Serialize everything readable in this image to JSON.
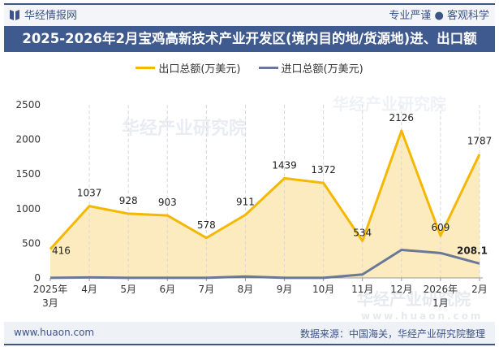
{
  "header": {
    "brand": "华经情报网",
    "slogan": "专业严谨 ● 客观科学",
    "logo_icon": "book-icon"
  },
  "title": "2025-2026年2月宝鸡高新技术产业开发区(境内目的地/货源地)进、出口额",
  "footer": {
    "website": "www.huaon.com",
    "source": "数据来源：中国海关，华经产业研究院整理"
  },
  "watermark": {
    "text": "华经产业研究院",
    "url": "www.huaon.com"
  },
  "chart_data": {
    "type": "line",
    "categories": [
      "2025年\n3月",
      "4月",
      "5月",
      "6月",
      "7月",
      "8月",
      "9月",
      "10月",
      "11月",
      "12月",
      "2026年\n1月",
      "2月"
    ],
    "ylim": [
      0,
      2500
    ],
    "yticks": [
      0,
      500,
      1000,
      1500,
      2000,
      2500
    ],
    "grid": "vertical dashed",
    "legend_position": "top",
    "series": [
      {
        "name": "出口总额(万美元)",
        "color": "#f5b800",
        "fill": "#fdebc0",
        "values": [
          416,
          1037,
          928,
          903,
          578,
          911,
          1439,
          1372,
          534,
          2126,
          609,
          1787
        ],
        "labels": [
          "416",
          "1037",
          "928",
          "903",
          "578",
          "911",
          "1439",
          "1372",
          "534",
          "2126",
          "609",
          "1787"
        ]
      },
      {
        "name": "进口总额(万美元)",
        "color": "#6a7898",
        "values": [
          2,
          8,
          2,
          2,
          2,
          20,
          2,
          2,
          50,
          405,
          360,
          208.1
        ],
        "labels": [
          "",
          "",
          "",
          "",
          "",
          "",
          "",
          "",
          "",
          "",
          "",
          "208.1"
        ]
      }
    ]
  }
}
